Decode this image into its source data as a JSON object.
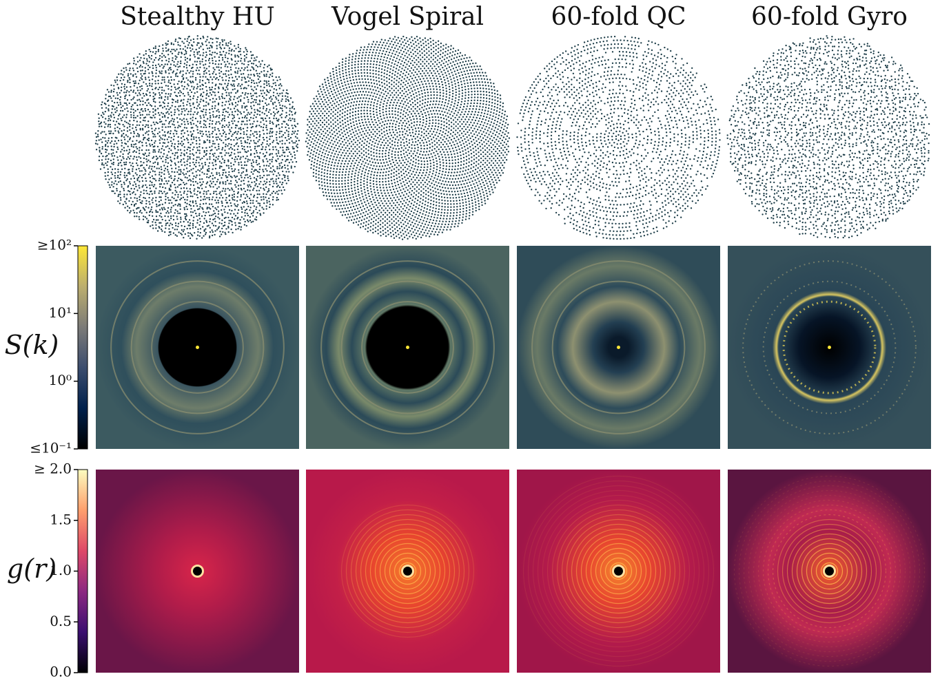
{
  "columns": [
    "Stealthy HU",
    "Vogel Spiral",
    "60-fold QC",
    "60-fold Gyro"
  ],
  "rows": [
    {
      "label": "S(k)",
      "colorbar": {
        "scale": "log",
        "lim": [
          0.1,
          100
        ],
        "colors": [
          "#000000",
          "#00204c",
          "#3c4d6e",
          "#7c7b78",
          "#bcae6e",
          "#fde737"
        ],
        "ticks": [
          {
            "value": 100,
            "label": "≥10²"
          },
          {
            "value": 10,
            "label": "10¹"
          },
          {
            "value": 1,
            "label": "10⁰"
          },
          {
            "value": 0.1,
            "label": "≤10⁻¹"
          }
        ]
      }
    },
    {
      "label": "g(r)",
      "colorbar": {
        "scale": "linear",
        "lim": [
          0,
          2
        ],
        "colors": [
          "#000004",
          "#3b0f70",
          "#8c2981",
          "#de4968",
          "#fe9f6d",
          "#fcfdbf"
        ],
        "ticks": [
          {
            "value": 2,
            "label": "≥ 2.0"
          },
          1.5,
          {
            "value": 1,
            "label": "1.0"
          },
          0.5,
          {
            "value": 0,
            "label": "0.0"
          }
        ]
      }
    }
  ]
}
